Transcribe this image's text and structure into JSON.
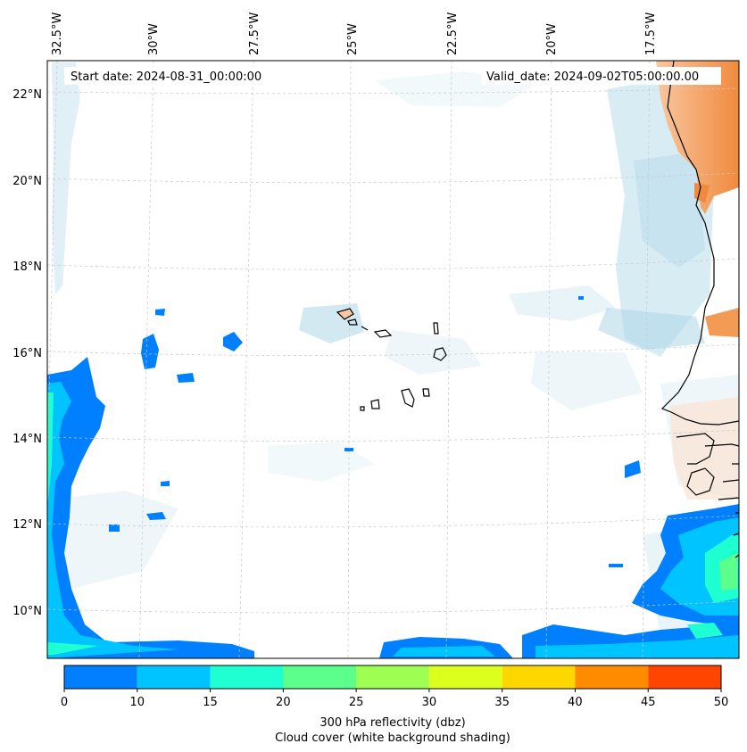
{
  "header": {
    "start_date": "Start date: 2024-08-31_00:00:00",
    "valid_date": "Valid_date: 2024-09-02T05:00:00.00"
  },
  "map": {
    "longitude_labels": [
      "32.5°W",
      "30°W",
      "27.5°W",
      "25°W",
      "22.5°W",
      "20°W",
      "17.5°W"
    ],
    "latitude_labels": [
      "22°N",
      "20°N",
      "18°N",
      "16°N",
      "14°N",
      "12°N",
      "10°N"
    ],
    "gridlines": true,
    "coastline_color": "#000000"
  },
  "colorbar": {
    "ticks": [
      "0",
      "10",
      "15",
      "20",
      "25",
      "30",
      "35",
      "40",
      "45",
      "50"
    ],
    "colors": [
      "#0080ff",
      "#00c4ff",
      "#1effd2",
      "#5cff8c",
      "#9eff52",
      "#dcff1e",
      "#ffd700",
      "#ff8c00",
      "#ff4500"
    ],
    "label": "300 hPa reflectivity (dbz)",
    "sublabel": "Cloud cover (white background shading)"
  },
  "legend_colors": {
    "cloud_cover": "#a8d4e6",
    "land_orange": "#f4a460"
  }
}
